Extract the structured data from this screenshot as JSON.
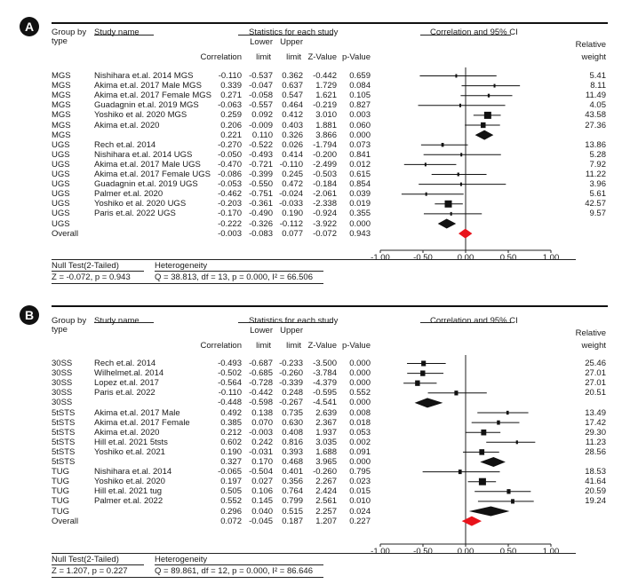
{
  "chart_data": [
    {
      "type": "forest",
      "panel_label": "A",
      "headers": {
        "group_by": "Group by",
        "type": "type",
        "study_name": "Study name",
        "stats_title": "Statistics for each study",
        "correlation": "Correlation",
        "lower1": "Lower",
        "lower2": "limit",
        "upper1": "Upper",
        "upper2": "limit",
        "zvalue": "Z-Value",
        "pvalue": "p-Value",
        "plot_title": "Correlation and 95% CI",
        "weight1": "Relative",
        "weight2": "weight"
      },
      "xlim": [
        -1.0,
        1.0
      ],
      "ticks": [
        "-1.00",
        "-0.50",
        "0.00",
        "0.50",
        "1.00"
      ],
      "tick_values": [
        -1.0,
        -0.5,
        0.0,
        0.5,
        1.0
      ],
      "rows": [
        {
          "group": "MGS",
          "study": "Nishihara et.al. 2014 MGS",
          "r": "-0.110",
          "lo": "-0.537",
          "hi": "0.362",
          "z": "-0.442",
          "p": "0.659",
          "w": "5.41",
          "kind": "study"
        },
        {
          "group": "MGS",
          "study": "Akima et.al. 2017 Male MGS",
          "r": "0.339",
          "lo": "-0.047",
          "hi": "0.637",
          "z": "1.729",
          "p": "0.084",
          "w": "8.11",
          "kind": "study"
        },
        {
          "group": "MGS",
          "study": "Akima et.al. 2017 Female MGS",
          "r": "0.271",
          "lo": "-0.058",
          "hi": "0.547",
          "z": "1.621",
          "p": "0.105",
          "w": "11.49",
          "kind": "study"
        },
        {
          "group": "MGS",
          "study": "Guadagnin et.al. 2019 MGS",
          "r": "-0.063",
          "lo": "-0.557",
          "hi": "0.464",
          "z": "-0.219",
          "p": "0.827",
          "w": "4.05",
          "kind": "study"
        },
        {
          "group": "MGS",
          "study": "Yoshiko et al. 2020 MGS",
          "r": "0.259",
          "lo": "0.092",
          "hi": "0.412",
          "z": "3.010",
          "p": "0.003",
          "w": "43.58",
          "kind": "study"
        },
        {
          "group": "MGS",
          "study": "Akima et.al. 2020",
          "r": "0.206",
          "lo": "-0.009",
          "hi": "0.403",
          "z": "1.881",
          "p": "0.060",
          "w": "27.36",
          "kind": "study"
        },
        {
          "group": "MGS",
          "study": "",
          "r": "0.221",
          "lo": "0.110",
          "hi": "0.326",
          "z": "3.866",
          "p": "0.000",
          "w": "",
          "kind": "subtotal"
        },
        {
          "group": "UGS",
          "study": "Rech et.al. 2014",
          "r": "-0.270",
          "lo": "-0.522",
          "hi": "0.026",
          "z": "-1.794",
          "p": "0.073",
          "w": "13.86",
          "kind": "study"
        },
        {
          "group": "UGS",
          "study": "Nishihara et.al. 2014 UGS",
          "r": "-0.050",
          "lo": "-0.493",
          "hi": "0.414",
          "z": "-0.200",
          "p": "0.841",
          "w": "5.28",
          "kind": "study"
        },
        {
          "group": "UGS",
          "study": "Akima et.al. 2017 Male UGS",
          "r": "-0.470",
          "lo": "-0.721",
          "hi": "-0.110",
          "z": "-2.499",
          "p": "0.012",
          "w": "7.92",
          "kind": "study"
        },
        {
          "group": "UGS",
          "study": "Akima et.al. 2017 Female UGS",
          "r": "-0.086",
          "lo": "-0.399",
          "hi": "0.245",
          "z": "-0.503",
          "p": "0.615",
          "w": "11.22",
          "kind": "study"
        },
        {
          "group": "UGS",
          "study": "Guadagnin et.al. 2019 UGS",
          "r": "-0.053",
          "lo": "-0.550",
          "hi": "0.472",
          "z": "-0.184",
          "p": "0.854",
          "w": "3.96",
          "kind": "study"
        },
        {
          "group": "UGS",
          "study": "Palmer et.al. 2020",
          "r": "-0.462",
          "lo": "-0.751",
          "hi": "-0.024",
          "z": "-2.061",
          "p": "0.039",
          "w": "5.61",
          "kind": "study"
        },
        {
          "group": "UGS",
          "study": "Yoshiko et al. 2020 UGS",
          "r": "-0.203",
          "lo": "-0.361",
          "hi": "-0.033",
          "z": "-2.338",
          "p": "0.019",
          "w": "42.57",
          "kind": "study"
        },
        {
          "group": "UGS",
          "study": "Paris et.al. 2022 UGS",
          "r": "-0.170",
          "lo": "-0.490",
          "hi": "0.190",
          "z": "-0.924",
          "p": "0.355",
          "w": "9.57",
          "kind": "study"
        },
        {
          "group": "UGS",
          "study": "",
          "r": "-0.222",
          "lo": "-0.326",
          "hi": "-0.112",
          "z": "-3.922",
          "p": "0.000",
          "w": "",
          "kind": "subtotal"
        },
        {
          "group": "Overall",
          "study": "",
          "r": "-0.003",
          "lo": "-0.083",
          "hi": "0.077",
          "z": "-0.072",
          "p": "0.943",
          "w": "",
          "kind": "overall"
        }
      ],
      "footer": {
        "null_title": "Null Test(2-Tailed)",
        "null_value": "Z = -0.072, p = 0.943",
        "het_title": "Heterogeneity",
        "het_value": "Q = 38.813, df = 13, p = 0.000, I² = 66.506"
      }
    },
    {
      "type": "forest",
      "panel_label": "B",
      "headers": {
        "group_by": "Group by",
        "type": "type",
        "study_name": "Study name",
        "stats_title": "Statistics for each study",
        "correlation": "Correlation",
        "lower1": "Lower",
        "lower2": "limit",
        "upper1": "Upper",
        "upper2": "limit",
        "zvalue": "Z-Value",
        "pvalue": "p-Value",
        "plot_title": "Correlation and 95% CI",
        "weight1": "Relative",
        "weight2": "weight"
      },
      "xlim": [
        -1.0,
        1.0
      ],
      "ticks": [
        "-1.00",
        "-0.50",
        "0.00",
        "0.50",
        "1.00"
      ],
      "tick_values": [
        -1.0,
        -0.5,
        0.0,
        0.5,
        1.0
      ],
      "rows": [
        {
          "group": "30SS",
          "study": "Rech et.al. 2014",
          "r": "-0.493",
          "lo": "-0.687",
          "hi": "-0.233",
          "z": "-3.500",
          "p": "0.000",
          "w": "25.46",
          "kind": "study"
        },
        {
          "group": "30SS",
          "study": "Wilhelmet.al. 2014",
          "r": "-0.502",
          "lo": "-0.685",
          "hi": "-0.260",
          "z": "-3.784",
          "p": "0.000",
          "w": "27.01",
          "kind": "study"
        },
        {
          "group": "30SS",
          "study": "Lopez et.al. 2017",
          "r": "-0.564",
          "lo": "-0.728",
          "hi": "-0.339",
          "z": "-4.379",
          "p": "0.000",
          "w": "27.01",
          "kind": "study"
        },
        {
          "group": "30SS",
          "study": "Paris et.al. 2022",
          "r": "-0.110",
          "lo": "-0.442",
          "hi": "0.248",
          "z": "-0.595",
          "p": "0.552",
          "w": "20.51",
          "kind": "study"
        },
        {
          "group": "30SS",
          "study": "",
          "r": "-0.448",
          "lo": "-0.598",
          "hi": "-0.267",
          "z": "-4.541",
          "p": "0.000",
          "w": "",
          "kind": "subtotal"
        },
        {
          "group": "5tSTS",
          "study": "Akima et.al. 2017 Male",
          "r": "0.492",
          "lo": "0.138",
          "hi": "0.735",
          "z": "2.639",
          "p": "0.008",
          "w": "13.49",
          "kind": "study"
        },
        {
          "group": "5tSTS",
          "study": "Akima et.al. 2017 Female",
          "r": "0.385",
          "lo": "0.070",
          "hi": "0.630",
          "z": "2.367",
          "p": "0.018",
          "w": "17.42",
          "kind": "study"
        },
        {
          "group": "5tSTS",
          "study": "Akima et.al. 2020",
          "r": "0.212",
          "lo": "-0.003",
          "hi": "0.408",
          "z": "1.937",
          "p": "0.053",
          "w": "29.30",
          "kind": "study"
        },
        {
          "group": "5tSTS",
          "study": "Hill et.al. 2021 5tsts",
          "r": "0.602",
          "lo": "0.242",
          "hi": "0.816",
          "z": "3.035",
          "p": "0.002",
          "w": "11.23",
          "kind": "study"
        },
        {
          "group": "5tSTS",
          "study": "Yoshiko et.al. 2021",
          "r": "0.190",
          "lo": "-0.031",
          "hi": "0.393",
          "z": "1.688",
          "p": "0.091",
          "w": "28.56",
          "kind": "study"
        },
        {
          "group": "5tSTS",
          "study": "",
          "r": "0.327",
          "lo": "0.170",
          "hi": "0.468",
          "z": "3.965",
          "p": "0.000",
          "w": "",
          "kind": "subtotal"
        },
        {
          "group": "TUG",
          "study": "Nishihara et.al. 2014",
          "r": "-0.065",
          "lo": "-0.504",
          "hi": "0.401",
          "z": "-0.260",
          "p": "0.795",
          "w": "18.53",
          "kind": "study"
        },
        {
          "group": "TUG",
          "study": "Yoshiko et.al. 2020",
          "r": "0.197",
          "lo": "0.027",
          "hi": "0.356",
          "z": "2.267",
          "p": "0.023",
          "w": "41.64",
          "kind": "study"
        },
        {
          "group": "TUG",
          "study": "Hill et.al. 2021 tug",
          "r": "0.505",
          "lo": "0.106",
          "hi": "0.764",
          "z": "2.424",
          "p": "0.015",
          "w": "20.59",
          "kind": "study"
        },
        {
          "group": "TUG",
          "study": "Palmer et.al. 2022",
          "r": "0.552",
          "lo": "0.145",
          "hi": "0.799",
          "z": "2.561",
          "p": "0.010",
          "w": "19.24",
          "kind": "study"
        },
        {
          "group": "TUG",
          "study": "",
          "r": "0.296",
          "lo": "0.040",
          "hi": "0.515",
          "z": "2.257",
          "p": "0.024",
          "w": "",
          "kind": "subtotal"
        },
        {
          "group": "Overall",
          "study": "",
          "r": "0.072",
          "lo": "-0.045",
          "hi": "0.187",
          "z": "1.207",
          "p": "0.227",
          "w": "",
          "kind": "overall"
        }
      ],
      "footer": {
        "null_title": "Null Test(2-Tailed)",
        "null_value": "Z = 1.207, p = 0.227",
        "het_title": "Heterogeneity",
        "het_value": "Q = 89.861, df = 12, p = 0.000, I² = 86.646"
      }
    }
  ],
  "colors": {
    "diamond": "#111111",
    "overall_diamond": "#e8131b",
    "text": "#1a1a1a"
  }
}
